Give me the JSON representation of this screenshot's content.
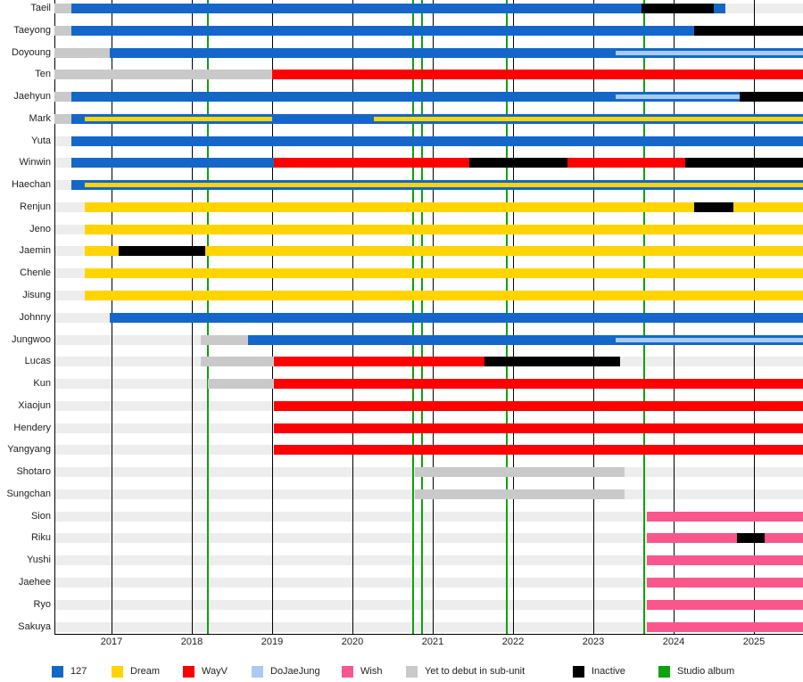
{
  "chart_data": {
    "type": "gantt-timeline",
    "x_axis": {
      "ticks": [
        2017,
        2018,
        2019,
        2020,
        2021,
        2022,
        2023,
        2024,
        2025
      ],
      "min": 2016.29,
      "max": 2025.61
    },
    "album_release_lines": [
      2018.2,
      2020.76,
      2020.87,
      2021.92,
      2023.63
    ],
    "colors": {
      "127": "#1467C8",
      "dream": "#FFD400",
      "wayv": "#FF0000",
      "dojaejung": "#A9CBF2",
      "wish": "#F9568C",
      "predebut": "#C9C9C9",
      "inactive": "#000000",
      "album": "#0CA30C",
      "row_band": "#EDEDED"
    },
    "legend": [
      {
        "label": "127",
        "key": "127"
      },
      {
        "label": "Dream",
        "key": "dream"
      },
      {
        "label": "WayV",
        "key": "wayv"
      },
      {
        "label": "DoJaeJung",
        "key": "dojaejung"
      },
      {
        "label": "Wish",
        "key": "wish"
      },
      {
        "label": "Yet to debut in sub-unit",
        "key": "predebut"
      },
      {
        "label": "Inactive",
        "key": "inactive"
      },
      {
        "label": "Studio album",
        "key": "album"
      }
    ],
    "rows": [
      {
        "name": "Taeil",
        "segments": [
          {
            "key": "predebut",
            "start": 2016.29,
            "end": 2016.5
          },
          {
            "key": "127",
            "start": 2016.5,
            "end": 2023.6
          },
          {
            "key": "inactive",
            "start": 2023.6,
            "end": 2024.5
          },
          {
            "key": "127",
            "start": 2024.5,
            "end": 2024.64
          }
        ]
      },
      {
        "name": "Taeyong",
        "segments": [
          {
            "key": "predebut",
            "start": 2016.29,
            "end": 2016.5
          },
          {
            "key": "127",
            "start": 2016.5,
            "end": 2024.26
          },
          {
            "key": "inactive",
            "start": 2024.26,
            "end": 2025.61
          }
        ]
      },
      {
        "name": "Doyoung",
        "segments": [
          {
            "key": "predebut",
            "start": 2016.29,
            "end": 2016.98
          },
          {
            "key": "127",
            "start": 2016.98,
            "end": 2025.61
          },
          {
            "key": "dojaejung",
            "start": 2023.28,
            "end": 2025.61,
            "inner": true
          }
        ]
      },
      {
        "name": "Ten",
        "segments": [
          {
            "key": "predebut",
            "start": 2016.29,
            "end": 2019.0
          },
          {
            "key": "wayv",
            "start": 2019.0,
            "end": 2025.61
          }
        ]
      },
      {
        "name": "Jaehyun",
        "segments": [
          {
            "key": "predebut",
            "start": 2016.29,
            "end": 2016.5
          },
          {
            "key": "127",
            "start": 2016.5,
            "end": 2024.82
          },
          {
            "key": "inactive",
            "start": 2024.82,
            "end": 2025.61
          },
          {
            "key": "dojaejung",
            "start": 2023.28,
            "end": 2024.82,
            "inner": true
          }
        ]
      },
      {
        "name": "Mark",
        "segments": [
          {
            "key": "predebut",
            "start": 2016.29,
            "end": 2016.5
          },
          {
            "key": "127",
            "start": 2016.5,
            "end": 2025.61
          },
          {
            "key": "dream",
            "start": 2016.67,
            "end": 2019.0,
            "inner": true
          },
          {
            "key": "dream",
            "start": 2020.27,
            "end": 2025.61,
            "inner": true
          }
        ]
      },
      {
        "name": "Yuta",
        "segments": [
          {
            "key": "127",
            "start": 2016.5,
            "end": 2025.61
          }
        ]
      },
      {
        "name": "Winwin",
        "segments": [
          {
            "key": "127",
            "start": 2016.5,
            "end": 2019.02
          },
          {
            "key": "wayv",
            "start": 2019.02,
            "end": 2021.46
          },
          {
            "key": "inactive",
            "start": 2021.46,
            "end": 2022.68
          },
          {
            "key": "wayv",
            "start": 2022.68,
            "end": 2024.14
          },
          {
            "key": "inactive",
            "start": 2024.14,
            "end": 2025.61
          }
        ]
      },
      {
        "name": "Haechan",
        "segments": [
          {
            "key": "127",
            "start": 2016.5,
            "end": 2025.61
          },
          {
            "key": "dream",
            "start": 2016.67,
            "end": 2025.61,
            "inner": true
          }
        ]
      },
      {
        "name": "Renjun",
        "segments": [
          {
            "key": "dream",
            "start": 2016.67,
            "end": 2024.26
          },
          {
            "key": "inactive",
            "start": 2024.26,
            "end": 2024.74
          },
          {
            "key": "dream",
            "start": 2024.74,
            "end": 2025.61
          }
        ]
      },
      {
        "name": "Jeno",
        "segments": [
          {
            "key": "dream",
            "start": 2016.67,
            "end": 2025.61
          }
        ]
      },
      {
        "name": "Jaemin",
        "segments": [
          {
            "key": "dream",
            "start": 2016.67,
            "end": 2017.09
          },
          {
            "key": "inactive",
            "start": 2017.09,
            "end": 2018.17
          },
          {
            "key": "dream",
            "start": 2018.17,
            "end": 2025.61
          }
        ]
      },
      {
        "name": "Chenle",
        "segments": [
          {
            "key": "dream",
            "start": 2016.67,
            "end": 2025.61
          }
        ]
      },
      {
        "name": "Jisung",
        "segments": [
          {
            "key": "dream",
            "start": 2016.67,
            "end": 2025.61
          }
        ]
      },
      {
        "name": "Johnny",
        "segments": [
          {
            "key": "127",
            "start": 2016.98,
            "end": 2025.61
          }
        ]
      },
      {
        "name": "Jungwoo",
        "segments": [
          {
            "key": "predebut",
            "start": 2018.11,
            "end": 2018.7
          },
          {
            "key": "127",
            "start": 2018.7,
            "end": 2025.61
          },
          {
            "key": "dojaejung",
            "start": 2023.28,
            "end": 2025.61,
            "inner": true
          }
        ]
      },
      {
        "name": "Lucas",
        "segments": [
          {
            "key": "predebut",
            "start": 2018.11,
            "end": 2019.02
          },
          {
            "key": "wayv",
            "start": 2019.02,
            "end": 2021.64
          },
          {
            "key": "inactive",
            "start": 2021.64,
            "end": 2023.33
          }
        ]
      },
      {
        "name": "Kun",
        "segments": [
          {
            "key": "predebut",
            "start": 2018.2,
            "end": 2019.02
          },
          {
            "key": "wayv",
            "start": 2019.02,
            "end": 2025.61
          }
        ]
      },
      {
        "name": "Xiaojun",
        "segments": [
          {
            "key": "wayv",
            "start": 2019.02,
            "end": 2025.61
          }
        ]
      },
      {
        "name": "Hendery",
        "segments": [
          {
            "key": "wayv",
            "start": 2019.02,
            "end": 2025.61
          }
        ]
      },
      {
        "name": "Yangyang",
        "segments": [
          {
            "key": "wayv",
            "start": 2019.02,
            "end": 2025.61
          }
        ]
      },
      {
        "name": "Shotaro",
        "segments": [
          {
            "key": "predebut",
            "start": 2020.78,
            "end": 2023.39
          }
        ]
      },
      {
        "name": "Sungchan",
        "segments": [
          {
            "key": "predebut",
            "start": 2020.78,
            "end": 2023.39
          }
        ]
      },
      {
        "name": "Sion",
        "segments": [
          {
            "key": "wish",
            "start": 2023.67,
            "end": 2025.61
          }
        ]
      },
      {
        "name": "Riku",
        "segments": [
          {
            "key": "wish",
            "start": 2023.67,
            "end": 2024.79
          },
          {
            "key": "inactive",
            "start": 2024.79,
            "end": 2025.13
          },
          {
            "key": "wish",
            "start": 2025.13,
            "end": 2025.61
          }
        ]
      },
      {
        "name": "Yushi",
        "segments": [
          {
            "key": "wish",
            "start": 2023.67,
            "end": 2025.61
          }
        ]
      },
      {
        "name": "Jaehee",
        "segments": [
          {
            "key": "wish",
            "start": 2023.67,
            "end": 2025.61
          }
        ]
      },
      {
        "name": "Ryo",
        "segments": [
          {
            "key": "wish",
            "start": 2023.67,
            "end": 2025.61
          }
        ]
      },
      {
        "name": "Sakuya",
        "segments": [
          {
            "key": "wish",
            "start": 2023.67,
            "end": 2025.61
          }
        ]
      }
    ]
  }
}
